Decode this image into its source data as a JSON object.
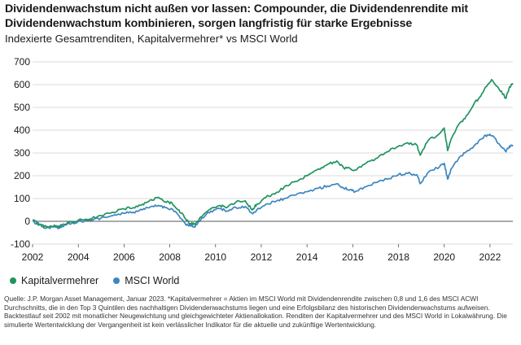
{
  "header": {
    "title": "Dividendenwachstum nicht außen vor lassen: Compounder, die Dividendenrendite mit Dividendenwachstum kombinieren, sorgen langfristig für starke Ergebnisse",
    "subtitle": "Indexierte Gesamtrenditen, Kapitalvermehrer* vs MSCI World"
  },
  "legend": {
    "items": [
      {
        "label": "Kapitalvermehrer",
        "color": "#21935f"
      },
      {
        "label": "MSCI World",
        "color": "#3d86bf"
      }
    ]
  },
  "footnote": "Quelle: J.P. Morgan Asset Management, Januar 2023. *Kapitalvermehrer = Aktien im MSCI World mit Dividendenrendite zwischen 0,8 und 1,6 des MSCI ACWI Durchschnitts, die in den Top 3 Quintilen des nachhaltigen Dividendenwachstums liegen und eine Erfolgsbilanz des historischen Dividendenwachstums aufweisen. Backtestlauf seit 2002 mit monatlicher Neugewichtung und gleichgewichteter Aktienallokation. Renditen der Kapitalvermehrer und des MSCI World in Lokalwährung. Die simulierte Wertentwicklung der Vergangenheit ist kein verlässlicher Indikator für die aktuelle und zukünftige Wertentwicklung.",
  "chart_data": {
    "type": "line",
    "title": "",
    "xlabel": "",
    "ylabel": "",
    "xlim": [
      2002,
      2023
    ],
    "ylim": [
      -100,
      700
    ],
    "x_ticks": [
      2002,
      2004,
      2006,
      2008,
      2010,
      2012,
      2014,
      2016,
      2018,
      2020,
      2022
    ],
    "x_tick_labels": [
      "2002",
      "2004",
      "2006",
      "2008",
      "2010",
      "2012",
      "2014",
      "2016",
      "2018",
      "2020",
      "2022"
    ],
    "y_ticks": [
      -100,
      0,
      100,
      200,
      300,
      400,
      500,
      600,
      700
    ],
    "y_tick_labels": [
      "-100",
      "0",
      "100",
      "200",
      "300",
      "400",
      "500",
      "600",
      "700"
    ],
    "grid": "horizontal",
    "legend_position": "bottom-left",
    "series": [
      {
        "name": "Kapitalvermehrer",
        "color": "#21935f",
        "x": [
          2002.0,
          2002.3,
          2002.6,
          2002.8,
          2003.1,
          2003.3,
          2003.6,
          2004.0,
          2004.5,
          2005.0,
          2005.5,
          2006.0,
          2006.4,
          2006.8,
          2007.1,
          2007.5,
          2007.8,
          2008.1,
          2008.4,
          2008.7,
          2008.9,
          2009.1,
          2009.4,
          2009.8,
          2010.2,
          2010.5,
          2010.9,
          2011.3,
          2011.6,
          2011.8,
          2012.2,
          2012.6,
          2013.0,
          2013.5,
          2014.0,
          2014.5,
          2014.9,
          2015.3,
          2015.6,
          2015.9,
          2016.1,
          2016.5,
          2017.0,
          2017.5,
          2018.0,
          2018.4,
          2018.8,
          2018.95,
          2019.3,
          2019.8,
          2020.0,
          2020.15,
          2020.3,
          2020.6,
          2020.9,
          2021.3,
          2021.6,
          2021.9,
          2022.1,
          2022.4,
          2022.7,
          2022.85,
          2023.0
        ],
        "y": [
          5,
          -15,
          -25,
          -20,
          -25,
          -15,
          -5,
          5,
          10,
          25,
          40,
          55,
          60,
          75,
          90,
          105,
          85,
          80,
          50,
          10,
          -10,
          -15,
          20,
          55,
          70,
          60,
          85,
          90,
          50,
          75,
          105,
          120,
          150,
          175,
          200,
          230,
          250,
          265,
          235,
          230,
          225,
          250,
          275,
          305,
          330,
          345,
          335,
          290,
          355,
          385,
          410,
          310,
          360,
          420,
          450,
          515,
          550,
          600,
          620,
          580,
          540,
          590,
          600
        ]
      },
      {
        "name": "MSCI World",
        "color": "#3d86bf",
        "x": [
          2002.0,
          2002.3,
          2002.6,
          2002.8,
          2003.1,
          2003.3,
          2003.6,
          2004.0,
          2004.5,
          2005.0,
          2005.5,
          2006.0,
          2006.4,
          2006.8,
          2007.1,
          2007.5,
          2007.8,
          2008.1,
          2008.4,
          2008.7,
          2008.9,
          2009.1,
          2009.4,
          2009.8,
          2010.2,
          2010.5,
          2010.9,
          2011.3,
          2011.6,
          2011.8,
          2012.2,
          2012.6,
          2013.0,
          2013.5,
          2014.0,
          2014.5,
          2014.9,
          2015.3,
          2015.6,
          2015.9,
          2016.1,
          2016.5,
          2017.0,
          2017.5,
          2018.0,
          2018.4,
          2018.8,
          2018.95,
          2019.3,
          2019.8,
          2020.0,
          2020.15,
          2020.3,
          2020.6,
          2020.9,
          2021.3,
          2021.6,
          2021.9,
          2022.1,
          2022.4,
          2022.7,
          2022.85,
          2023.0
        ],
        "y": [
          0,
          -15,
          -30,
          -25,
          -30,
          -20,
          -10,
          0,
          5,
          15,
          25,
          35,
          40,
          50,
          60,
          70,
          60,
          55,
          25,
          -15,
          -20,
          -25,
          15,
          45,
          55,
          45,
          60,
          65,
          35,
          50,
          75,
          85,
          100,
          115,
          130,
          145,
          155,
          165,
          145,
          140,
          130,
          150,
          170,
          185,
          205,
          210,
          205,
          165,
          215,
          240,
          255,
          185,
          230,
          270,
          300,
          330,
          360,
          380,
          375,
          340,
          305,
          330,
          335
        ]
      }
    ]
  }
}
